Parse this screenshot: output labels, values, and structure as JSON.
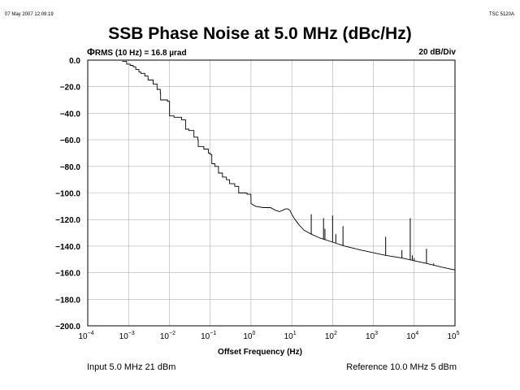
{
  "header": {
    "timestamp": "07 May 2007 12:09:19",
    "model": "TSC 5120A"
  },
  "footer": {
    "input": "Input 5.0 MHz 21 dBm",
    "reference": "Reference 10.0 MHz 5 dBm"
  },
  "chart_data": {
    "type": "line",
    "title": "SSB Phase Noise at 5.0 MHz (dBc/Hz)",
    "annotation_left_symbol": "Φ",
    "annotation_left": "RMS (10 Hz) = 16.8 µrad",
    "annotation_right": "20 dB/Div",
    "xlabel": "Offset Frequency (Hz)",
    "ylabel": "",
    "x_scale": "log",
    "xlim": [
      0.0001,
      100000
    ],
    "ylim": [
      -200,
      0
    ],
    "grid": true,
    "x_tick_base": "10",
    "x_tick_exponents": [
      "−4",
      "−3",
      "−2",
      "−1",
      "0",
      "1",
      "2",
      "3",
      "4",
      "5"
    ],
    "y_ticks": [
      "0.0",
      "−20.0",
      "−40.0",
      "−60.0",
      "−80.0",
      "−100.0",
      "−120.0",
      "−140.0",
      "−160.0",
      "−180.0",
      "−200.0"
    ],
    "series": [
      {
        "x": [
          0.0007,
          0.0009,
          0.0011,
          0.0013,
          0.0015,
          0.0018,
          0.002,
          0.0025,
          0.003,
          0.004,
          0.005,
          0.006,
          0.0061,
          0.009,
          0.0101,
          0.013,
          0.02,
          0.025,
          0.03,
          0.04,
          0.05,
          0.051,
          0.07,
          0.09,
          0.1,
          0.11,
          0.13,
          0.16,
          0.2,
          0.25,
          0.3,
          0.4,
          0.5,
          0.6,
          0.8,
          0.99,
          1.0,
          1.3,
          2,
          3,
          4,
          5,
          6,
          7,
          8,
          9,
          10,
          12,
          15,
          20,
          30,
          50,
          100,
          200,
          500,
          1000,
          2000,
          5000,
          10000,
          20000,
          50000,
          100000
        ],
        "y": [
          -1,
          -3,
          -4,
          -5,
          -7,
          -9,
          -10,
          -12,
          -15,
          -18,
          -22,
          -25,
          -30,
          -31,
          -42,
          -43,
          -45,
          -52,
          -53,
          -58,
          -60,
          -65,
          -67,
          -70,
          -71,
          -78,
          -80,
          -85,
          -88,
          -90,
          -93,
          -95,
          -100,
          -100,
          -101,
          -102,
          -108,
          -110,
          -111,
          -111,
          -113,
          -114,
          -113,
          -112,
          -112,
          -113,
          -116,
          -120,
          -124,
          -128,
          -131,
          -134,
          -137,
          -140,
          -143,
          -145,
          -147,
          -149,
          -151,
          -153,
          -156,
          -158
        ]
      }
    ],
    "spurs": [
      {
        "x": 30,
        "y": -116
      },
      {
        "x": 60,
        "y": -119
      },
      {
        "x": 65,
        "y": -127
      },
      {
        "x": 100,
        "y": -117
      },
      {
        "x": 120,
        "y": -131
      },
      {
        "x": 180,
        "y": -125
      },
      {
        "x": 2000,
        "y": -133
      },
      {
        "x": 5000,
        "y": -143
      },
      {
        "x": 8000,
        "y": -119
      },
      {
        "x": 9000,
        "y": -147
      },
      {
        "x": 10000,
        "y": -149
      },
      {
        "x": 20000,
        "y": -142
      },
      {
        "x": 30000,
        "y": -153
      }
    ]
  }
}
